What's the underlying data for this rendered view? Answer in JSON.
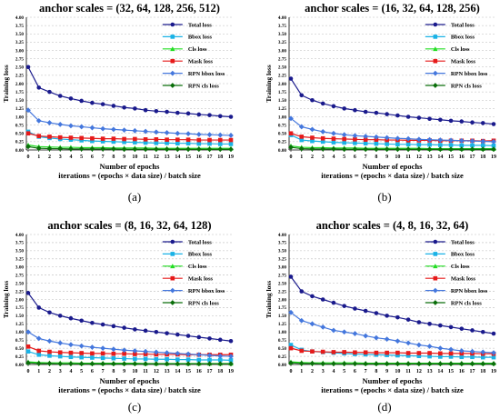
{
  "chart_data": [
    {
      "type": "line",
      "title": "anchor scales = (32, 64, 128, 256, 512)",
      "xlabel": "Number of epochs",
      "xlabel2": "iterations = (epochs × data size) / batch size",
      "ylabel": "Training loss",
      "caption": "(a)",
      "ylim": [
        0,
        4
      ],
      "yticks": [
        "0.00",
        "0.25",
        "0.50",
        "0.75",
        "1.00",
        "1.25",
        "1.50",
        "1.75",
        "2.00",
        "2.25",
        "2.50",
        "2.75",
        "3.00",
        "3.25",
        "3.50",
        "3.75",
        "4.00"
      ],
      "x": [
        0,
        1,
        2,
        3,
        4,
        5,
        6,
        7,
        8,
        9,
        10,
        11,
        12,
        13,
        14,
        15,
        16,
        17,
        18,
        19
      ],
      "grid": "horizontal dashed",
      "legend_position": "top-right",
      "series": [
        {
          "name": "Total loss",
          "color": "#1a1a8c",
          "marker": "circle",
          "values": [
            2.5,
            1.88,
            1.75,
            1.63,
            1.55,
            1.48,
            1.42,
            1.38,
            1.33,
            1.28,
            1.25,
            1.2,
            1.17,
            1.15,
            1.12,
            1.1,
            1.07,
            1.05,
            1.02,
            1.0
          ]
        },
        {
          "name": "Bbox loss",
          "color": "#1ab2e6",
          "marker": "square",
          "values": [
            0.55,
            0.4,
            0.36,
            0.33,
            0.31,
            0.29,
            0.27,
            0.26,
            0.25,
            0.24,
            0.23,
            0.22,
            0.21,
            0.21,
            0.2,
            0.2,
            0.19,
            0.19,
            0.18,
            0.18
          ]
        },
        {
          "name": "Cls loss",
          "color": "#22dd22",
          "marker": "triangle",
          "values": [
            0.15,
            0.1,
            0.09,
            0.08,
            0.08,
            0.07,
            0.07,
            0.07,
            0.06,
            0.06,
            0.06,
            0.06,
            0.05,
            0.05,
            0.05,
            0.05,
            0.05,
            0.05,
            0.05,
            0.05
          ]
        },
        {
          "name": "Mask loss",
          "color": "#e61a1a",
          "marker": "square",
          "values": [
            0.5,
            0.42,
            0.4,
            0.38,
            0.37,
            0.36,
            0.35,
            0.34,
            0.34,
            0.33,
            0.33,
            0.32,
            0.32,
            0.31,
            0.31,
            0.31,
            0.3,
            0.3,
            0.3,
            0.3
          ]
        },
        {
          "name": "RPN bbox loss",
          "color": "#4477dd",
          "marker": "diamond",
          "values": [
            1.2,
            0.88,
            0.82,
            0.77,
            0.73,
            0.7,
            0.67,
            0.64,
            0.62,
            0.6,
            0.58,
            0.56,
            0.54,
            0.52,
            0.5,
            0.49,
            0.47,
            0.46,
            0.45,
            0.44
          ]
        },
        {
          "name": "RPN cls loss",
          "color": "#0a6e0a",
          "marker": "diamond",
          "values": [
            0.1,
            0.05,
            0.04,
            0.04,
            0.03,
            0.03,
            0.03,
            0.03,
            0.03,
            0.02,
            0.02,
            0.02,
            0.02,
            0.02,
            0.02,
            0.02,
            0.02,
            0.02,
            0.02,
            0.02
          ]
        }
      ]
    },
    {
      "type": "line",
      "title": "anchor scales = (16, 32, 64, 128, 256)",
      "xlabel": "Number of epochs",
      "xlabel2": "iterations = (epochs × data size) / batch size",
      "ylabel": "Training loss",
      "caption": "(b)",
      "ylim": [
        0,
        4
      ],
      "yticks": [
        "0.00",
        "0.25",
        "0.50",
        "0.75",
        "1.00",
        "1.25",
        "1.50",
        "1.75",
        "2.00",
        "2.25",
        "2.50",
        "2.75",
        "3.00",
        "3.25",
        "3.50",
        "3.75",
        "4.00"
      ],
      "x": [
        0,
        1,
        2,
        3,
        4,
        5,
        6,
        7,
        8,
        9,
        10,
        11,
        12,
        13,
        14,
        15,
        16,
        17,
        18,
        19
      ],
      "grid": "horizontal dashed",
      "legend_position": "top-right",
      "series": [
        {
          "name": "Total loss",
          "color": "#1a1a8c",
          "marker": "circle",
          "values": [
            2.15,
            1.65,
            1.5,
            1.4,
            1.32,
            1.25,
            1.2,
            1.15,
            1.12,
            1.08,
            1.04,
            1.0,
            0.97,
            0.94,
            0.91,
            0.88,
            0.86,
            0.83,
            0.81,
            0.78
          ]
        },
        {
          "name": "Bbox loss",
          "color": "#1ab2e6",
          "marker": "square",
          "values": [
            0.45,
            0.3,
            0.27,
            0.25,
            0.23,
            0.22,
            0.21,
            0.2,
            0.19,
            0.18,
            0.17,
            0.17,
            0.16,
            0.16,
            0.15,
            0.15,
            0.14,
            0.14,
            0.14,
            0.13
          ]
        },
        {
          "name": "Cls loss",
          "color": "#22dd22",
          "marker": "triangle",
          "values": [
            0.12,
            0.08,
            0.07,
            0.07,
            0.06,
            0.06,
            0.06,
            0.05,
            0.05,
            0.05,
            0.05,
            0.05,
            0.05,
            0.04,
            0.04,
            0.04,
            0.04,
            0.04,
            0.04,
            0.04
          ]
        },
        {
          "name": "Mask loss",
          "color": "#e61a1a",
          "marker": "square",
          "values": [
            0.5,
            0.4,
            0.37,
            0.35,
            0.34,
            0.33,
            0.32,
            0.31,
            0.31,
            0.3,
            0.3,
            0.29,
            0.29,
            0.29,
            0.28,
            0.28,
            0.28,
            0.28,
            0.27,
            0.28
          ]
        },
        {
          "name": "RPN bbox loss",
          "color": "#4477dd",
          "marker": "diamond",
          "values": [
            0.95,
            0.7,
            0.62,
            0.55,
            0.5,
            0.46,
            0.43,
            0.41,
            0.39,
            0.37,
            0.35,
            0.34,
            0.32,
            0.31,
            0.3,
            0.29,
            0.28,
            0.27,
            0.26,
            0.25
          ]
        },
        {
          "name": "RPN cls loss",
          "color": "#0a6e0a",
          "marker": "diamond",
          "values": [
            0.08,
            0.04,
            0.03,
            0.03,
            0.03,
            0.02,
            0.02,
            0.02,
            0.02,
            0.02,
            0.02,
            0.02,
            0.02,
            0.02,
            0.02,
            0.02,
            0.02,
            0.02,
            0.02,
            0.02
          ]
        }
      ]
    },
    {
      "type": "line",
      "title": "anchor scales = (8, 16, 32, 64, 128)",
      "xlabel": "Number of epochs",
      "xlabel2": "iterations = (epochs × data size) / batch size",
      "ylabel": "Training loss",
      "caption": "(c)",
      "ylim": [
        0,
        4
      ],
      "yticks": [
        "0.00",
        "0.25",
        "0.50",
        "0.75",
        "1.00",
        "1.25",
        "1.50",
        "1.75",
        "2.00",
        "2.25",
        "2.50",
        "2.75",
        "3.00",
        "3.25",
        "3.50",
        "3.75",
        "4.00"
      ],
      "x": [
        0,
        1,
        2,
        3,
        4,
        5,
        6,
        7,
        8,
        9,
        10,
        11,
        12,
        13,
        14,
        15,
        16,
        17,
        18,
        19
      ],
      "grid": "horizontal dashed",
      "legend_position": "top-right",
      "series": [
        {
          "name": "Total loss",
          "color": "#1a1a8c",
          "marker": "circle",
          "values": [
            2.2,
            1.75,
            1.6,
            1.5,
            1.42,
            1.35,
            1.28,
            1.23,
            1.18,
            1.13,
            1.08,
            1.04,
            1.0,
            0.96,
            0.92,
            0.88,
            0.84,
            0.8,
            0.76,
            0.72
          ]
        },
        {
          "name": "Bbox loss",
          "color": "#1ab2e6",
          "marker": "square",
          "values": [
            0.4,
            0.3,
            0.27,
            0.25,
            0.23,
            0.22,
            0.21,
            0.2,
            0.19,
            0.18,
            0.17,
            0.17,
            0.16,
            0.16,
            0.15,
            0.15,
            0.14,
            0.14,
            0.14,
            0.13
          ]
        },
        {
          "name": "Cls loss",
          "color": "#22dd22",
          "marker": "triangle",
          "values": [
            0.08,
            0.06,
            0.05,
            0.05,
            0.05,
            0.04,
            0.04,
            0.04,
            0.04,
            0.04,
            0.04,
            0.03,
            0.03,
            0.03,
            0.03,
            0.03,
            0.03,
            0.03,
            0.03,
            0.03
          ]
        },
        {
          "name": "Mask loss",
          "color": "#e61a1a",
          "marker": "square",
          "values": [
            0.55,
            0.42,
            0.39,
            0.37,
            0.36,
            0.35,
            0.34,
            0.34,
            0.33,
            0.33,
            0.32,
            0.32,
            0.31,
            0.31,
            0.31,
            0.3,
            0.3,
            0.3,
            0.3,
            0.3
          ]
        },
        {
          "name": "RPN bbox loss",
          "color": "#4477dd",
          "marker": "diamond",
          "values": [
            1.0,
            0.8,
            0.72,
            0.66,
            0.61,
            0.57,
            0.53,
            0.5,
            0.47,
            0.44,
            0.42,
            0.4,
            0.38,
            0.36,
            0.34,
            0.32,
            0.3,
            0.28,
            0.26,
            0.25
          ]
        },
        {
          "name": "RPN cls loss",
          "color": "#0a6e0a",
          "marker": "diamond",
          "values": [
            0.05,
            0.03,
            0.03,
            0.02,
            0.02,
            0.02,
            0.02,
            0.02,
            0.02,
            0.02,
            0.02,
            0.02,
            0.02,
            0.02,
            0.02,
            0.02,
            0.02,
            0.02,
            0.02,
            0.02
          ]
        }
      ]
    },
    {
      "type": "line",
      "title": "anchor scales = (4, 8, 16, 32, 64)",
      "xlabel": "Number of epochs",
      "xlabel2": "iterations = (epochs × data size) / batch size",
      "ylabel": "Training loss",
      "caption": "(d)",
      "ylim": [
        0,
        4
      ],
      "yticks": [
        "0.00",
        "0.25",
        "0.50",
        "0.75",
        "1.00",
        "1.25",
        "1.50",
        "1.75",
        "2.00",
        "2.25",
        "2.50",
        "2.75",
        "3.00",
        "3.25",
        "3.50",
        "3.75",
        "4.00"
      ],
      "x": [
        0,
        1,
        2,
        3,
        4,
        5,
        6,
        7,
        8,
        9,
        10,
        11,
        12,
        13,
        14,
        15,
        16,
        17,
        18,
        19
      ],
      "grid": "horizontal dashed",
      "legend_position": "top-right",
      "series": [
        {
          "name": "Total loss",
          "color": "#1a1a8c",
          "marker": "circle",
          "values": [
            2.7,
            2.25,
            2.1,
            2.0,
            1.9,
            1.8,
            1.72,
            1.65,
            1.58,
            1.5,
            1.45,
            1.38,
            1.3,
            1.25,
            1.2,
            1.15,
            1.1,
            1.05,
            1.0,
            0.95
          ]
        },
        {
          "name": "Bbox loss",
          "color": "#1ab2e6",
          "marker": "square",
          "values": [
            0.6,
            0.45,
            0.4,
            0.38,
            0.36,
            0.34,
            0.32,
            0.31,
            0.3,
            0.29,
            0.28,
            0.27,
            0.26,
            0.25,
            0.24,
            0.24,
            0.23,
            0.23,
            0.22,
            0.22
          ]
        },
        {
          "name": "Cls loss",
          "color": "#22dd22",
          "marker": "triangle",
          "values": [
            0.08,
            0.06,
            0.05,
            0.05,
            0.05,
            0.05,
            0.05,
            0.04,
            0.04,
            0.04,
            0.04,
            0.04,
            0.04,
            0.04,
            0.04,
            0.04,
            0.04,
            0.04,
            0.04,
            0.04
          ]
        },
        {
          "name": "Mask loss",
          "color": "#e61a1a",
          "marker": "square",
          "values": [
            0.5,
            0.42,
            0.4,
            0.39,
            0.38,
            0.38,
            0.37,
            0.37,
            0.36,
            0.36,
            0.36,
            0.35,
            0.35,
            0.35,
            0.34,
            0.34,
            0.34,
            0.34,
            0.33,
            0.33
          ]
        },
        {
          "name": "RPN bbox loss",
          "color": "#4477dd",
          "marker": "diamond",
          "values": [
            1.6,
            1.35,
            1.25,
            1.15,
            1.05,
            1.0,
            0.95,
            0.88,
            0.82,
            0.78,
            0.72,
            0.66,
            0.6,
            0.56,
            0.5,
            0.46,
            0.42,
            0.4,
            0.38,
            0.36
          ]
        },
        {
          "name": "RPN cls loss",
          "color": "#0a6e0a",
          "marker": "diamond",
          "values": [
            0.05,
            0.03,
            0.03,
            0.02,
            0.02,
            0.02,
            0.02,
            0.02,
            0.02,
            0.02,
            0.02,
            0.02,
            0.02,
            0.02,
            0.02,
            0.02,
            0.02,
            0.02,
            0.02,
            0.02
          ]
        }
      ]
    }
  ]
}
